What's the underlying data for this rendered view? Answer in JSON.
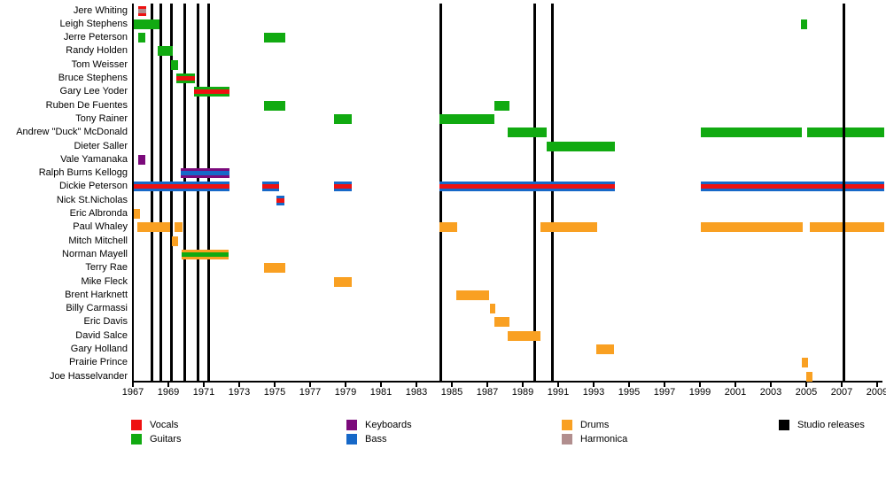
{
  "chart_data": {
    "type": "bar",
    "subtype": "band-membership-timeline",
    "title": "",
    "xlabel": "",
    "ylabel": "",
    "x_axis": {
      "min": 1967,
      "max": 2009.4,
      "tick_step": 2,
      "tick_years": [
        1967,
        1969,
        1971,
        1973,
        1975,
        1977,
        1979,
        1981,
        1983,
        1985,
        1987,
        1989,
        1991,
        1993,
        1995,
        1997,
        1999,
        2001,
        2003,
        2005,
        2007,
        2009
      ]
    },
    "role_colors": {
      "vocals": "#EE1111",
      "guitars": "#11AA11",
      "keyboards": "#7B0A7B",
      "bass": "#1668C8",
      "drums": "#F9A022",
      "harmonica": "#B18E8E",
      "release": "#000000"
    },
    "releases": [
      1968.05,
      1968.55,
      1969.15,
      1969.9,
      1970.65,
      1971.25,
      1984.35,
      1989.65,
      1990.65,
      2007.1
    ],
    "members": [
      {
        "name": "Jere Whiting",
        "bars": [
          {
            "start": 1967.3,
            "end": 1967.75,
            "roles": [
              "vocals",
              "harmonica"
            ]
          }
        ]
      },
      {
        "name": "Leigh Stephens",
        "bars": [
          {
            "start": 1967.05,
            "end": 1968.5,
            "roles": [
              "guitars"
            ]
          },
          {
            "start": 2004.7,
            "end": 2005.05,
            "roles": [
              "guitars"
            ]
          }
        ]
      },
      {
        "name": "Jerre Peterson",
        "bars": [
          {
            "start": 1967.3,
            "end": 1967.7,
            "roles": [
              "guitars"
            ]
          },
          {
            "start": 1974.4,
            "end": 1975.6,
            "roles": [
              "guitars"
            ]
          }
        ]
      },
      {
        "name": "Randy Holden",
        "bars": [
          {
            "start": 1968.4,
            "end": 1969.25,
            "roles": [
              "guitars"
            ]
          }
        ]
      },
      {
        "name": "Tom Weisser",
        "bars": [
          {
            "start": 1969.15,
            "end": 1969.55,
            "roles": [
              "guitars"
            ]
          }
        ]
      },
      {
        "name": "Bruce Stephens",
        "bars": [
          {
            "start": 1969.45,
            "end": 1970.5,
            "roles": [
              "guitars",
              "vocals"
            ]
          }
        ]
      },
      {
        "name": "Gary Lee Yoder",
        "bars": [
          {
            "start": 1970.45,
            "end": 1972.45,
            "roles": [
              "guitars",
              "vocals"
            ]
          }
        ]
      },
      {
        "name": "Ruben De Fuentes",
        "bars": [
          {
            "start": 1974.4,
            "end": 1975.6,
            "roles": [
              "guitars"
            ]
          },
          {
            "start": 1987.4,
            "end": 1988.25,
            "roles": [
              "guitars"
            ]
          }
        ]
      },
      {
        "name": "Tony Rainer",
        "bars": [
          {
            "start": 1978.35,
            "end": 1979.35,
            "roles": [
              "guitars"
            ]
          },
          {
            "start": 1984.3,
            "end": 1987.4,
            "roles": [
              "guitars"
            ]
          }
        ]
      },
      {
        "name": "Andrew \"Duck\" McDonald",
        "bars": [
          {
            "start": 1988.15,
            "end": 1990.35,
            "roles": [
              "guitars"
            ]
          },
          {
            "start": 1999.05,
            "end": 2004.75,
            "roles": [
              "guitars"
            ]
          },
          {
            "start": 2005.05,
            "end": 2009.4,
            "roles": [
              "guitars"
            ]
          }
        ]
      },
      {
        "name": "Dieter Saller",
        "bars": [
          {
            "start": 1990.35,
            "end": 1994.2,
            "roles": [
              "guitars"
            ]
          }
        ]
      },
      {
        "name": "Vale Yamanaka",
        "bars": [
          {
            "start": 1967.3,
            "end": 1967.7,
            "roles": [
              "keyboards"
            ]
          }
        ]
      },
      {
        "name": "Ralph Burns Kellogg",
        "bars": [
          {
            "start": 1969.7,
            "end": 1972.45,
            "roles": [
              "keyboards",
              "bass"
            ]
          }
        ]
      },
      {
        "name": "Dickie Peterson",
        "bars": [
          {
            "start": 1967.05,
            "end": 1972.45,
            "roles": [
              "bass",
              "vocals"
            ]
          },
          {
            "start": 1974.3,
            "end": 1975.25,
            "roles": [
              "bass",
              "vocals"
            ]
          },
          {
            "start": 1978.35,
            "end": 1979.35,
            "roles": [
              "bass",
              "vocals"
            ]
          },
          {
            "start": 1984.3,
            "end": 1994.2,
            "roles": [
              "bass",
              "vocals"
            ]
          },
          {
            "start": 1999.05,
            "end": 2009.4,
            "roles": [
              "bass",
              "vocals"
            ]
          }
        ]
      },
      {
        "name": "Nick St.Nicholas",
        "bars": [
          {
            "start": 1975.1,
            "end": 1975.55,
            "roles": [
              "bass",
              "vocals"
            ]
          }
        ]
      },
      {
        "name": "Eric Albronda",
        "bars": [
          {
            "start": 1967.05,
            "end": 1967.4,
            "roles": [
              "drums"
            ]
          }
        ]
      },
      {
        "name": "Paul Whaley",
        "bars": [
          {
            "start": 1967.25,
            "end": 1969.1,
            "roles": [
              "drums"
            ]
          },
          {
            "start": 1969.35,
            "end": 1969.8,
            "roles": [
              "drums"
            ]
          },
          {
            "start": 1984.3,
            "end": 1985.3,
            "roles": [
              "drums"
            ]
          },
          {
            "start": 1990.0,
            "end": 1993.2,
            "roles": [
              "drums"
            ]
          },
          {
            "start": 1999.05,
            "end": 2004.8,
            "roles": [
              "drums"
            ]
          },
          {
            "start": 2005.2,
            "end": 2009.4,
            "roles": [
              "drums"
            ]
          }
        ]
      },
      {
        "name": "Mitch Mitchell",
        "bars": [
          {
            "start": 1969.2,
            "end": 1969.55,
            "roles": [
              "drums"
            ]
          }
        ]
      },
      {
        "name": "Norman Mayell",
        "bars": [
          {
            "start": 1969.75,
            "end": 1972.4,
            "roles": [
              "drums",
              "guitars"
            ]
          }
        ]
      },
      {
        "name": "Terry Rae",
        "bars": [
          {
            "start": 1974.4,
            "end": 1975.6,
            "roles": [
              "drums"
            ]
          }
        ]
      },
      {
        "name": "Mike Fleck",
        "bars": [
          {
            "start": 1978.35,
            "end": 1979.35,
            "roles": [
              "drums"
            ]
          }
        ]
      },
      {
        "name": "Brent Harknett",
        "bars": [
          {
            "start": 1985.25,
            "end": 1987.1,
            "roles": [
              "drums"
            ]
          }
        ]
      },
      {
        "name": "Billy Carmassi",
        "bars": [
          {
            "start": 1987.15,
            "end": 1987.45,
            "roles": [
              "drums"
            ]
          }
        ]
      },
      {
        "name": "Eric Davis",
        "bars": [
          {
            "start": 1987.4,
            "end": 1988.25,
            "roles": [
              "drums"
            ]
          }
        ]
      },
      {
        "name": "David Salce",
        "bars": [
          {
            "start": 1988.15,
            "end": 1990.0,
            "roles": [
              "drums"
            ]
          }
        ]
      },
      {
        "name": "Gary Holland",
        "bars": [
          {
            "start": 1993.15,
            "end": 1994.15,
            "roles": [
              "drums"
            ]
          }
        ]
      },
      {
        "name": "Prairie Prince",
        "bars": [
          {
            "start": 2004.75,
            "end": 2005.1,
            "roles": [
              "drums"
            ]
          }
        ]
      },
      {
        "name": "Joe Hasselvander",
        "bars": [
          {
            "start": 2005.0,
            "end": 2005.35,
            "roles": [
              "drums"
            ]
          }
        ]
      }
    ],
    "legend": [
      {
        "label": "Vocals",
        "role": "vocals",
        "col": 0,
        "row": 0
      },
      {
        "label": "Guitars",
        "role": "guitars",
        "col": 0,
        "row": 1
      },
      {
        "label": "Keyboards",
        "role": "keyboards",
        "col": 1,
        "row": 0
      },
      {
        "label": "Bass",
        "role": "bass",
        "col": 1,
        "row": 1
      },
      {
        "label": "Drums",
        "role": "drums",
        "col": 2,
        "row": 0
      },
      {
        "label": "Harmonica",
        "role": "harmonica",
        "col": 2,
        "row": 1
      },
      {
        "label": "Studio releases",
        "role": "release",
        "col": 3,
        "row": 0
      }
    ],
    "legend_position": "bottom",
    "grid": false
  }
}
